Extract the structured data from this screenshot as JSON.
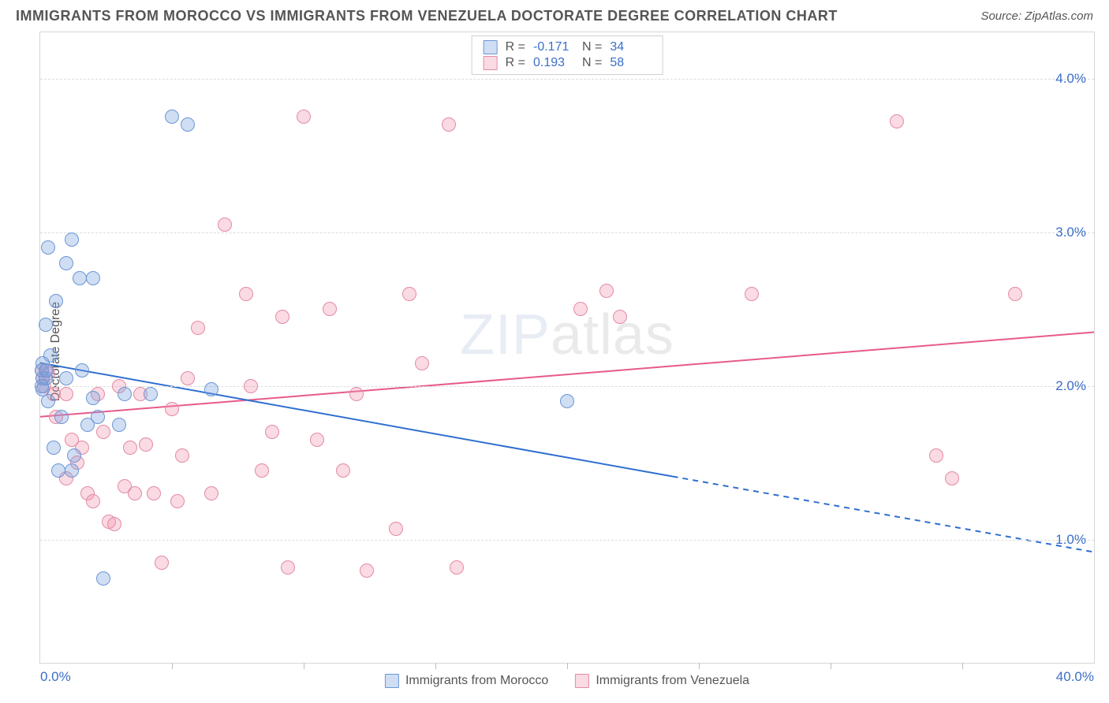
{
  "title": "IMMIGRANTS FROM MOROCCO VS IMMIGRANTS FROM VENEZUELA DOCTORATE DEGREE CORRELATION CHART",
  "source": "Source: ZipAtlas.com",
  "watermark_bold": "ZIP",
  "watermark_thin": "atlas",
  "chart": {
    "type": "scatter",
    "ylabel": "Doctorate Degree",
    "xlim": [
      0,
      40
    ],
    "ylim": [
      0.2,
      4.3
    ],
    "xtick_positions": [
      0,
      5,
      10,
      15,
      20,
      25,
      30,
      35,
      40
    ],
    "xlab_left": "0.0%",
    "xlab_right": "40.0%",
    "yticks": [
      1.0,
      2.0,
      3.0,
      4.0
    ],
    "ytick_labels": [
      "1.0%",
      "2.0%",
      "3.0%",
      "4.0%"
    ],
    "grid_color": "#dcdcdc",
    "background_color": "#ffffff",
    "marker_radius": 9,
    "marker_border_width": 1.5,
    "series": {
      "morocco": {
        "label": "Immigrants from Morocco",
        "fill": "rgba(120,160,220,0.35)",
        "stroke": "#6a96d6",
        "line_color": "#2f6fd0",
        "line_width": 2,
        "trend": {
          "y_at_x0": 2.15,
          "y_at_xmax": 0.92,
          "solid_until_x": 24
        },
        "R": "-0.171",
        "N": "34",
        "points": [
          [
            0.1,
            2.15
          ],
          [
            0.1,
            2.05
          ],
          [
            0.2,
            2.4
          ],
          [
            0.3,
            2.9
          ],
          [
            0.4,
            2.2
          ],
          [
            1.0,
            2.8
          ],
          [
            1.2,
            2.95
          ],
          [
            0.5,
            1.6
          ],
          [
            0.8,
            1.8
          ],
          [
            1.2,
            1.45
          ],
          [
            1.5,
            2.7
          ],
          [
            2.0,
            2.7
          ],
          [
            2.2,
            1.8
          ],
          [
            1.8,
            1.75
          ],
          [
            2.0,
            1.92
          ],
          [
            3.0,
            1.75
          ],
          [
            3.2,
            1.95
          ],
          [
            5.0,
            3.75
          ],
          [
            5.6,
            3.7
          ],
          [
            6.5,
            1.98
          ],
          [
            2.4,
            0.75
          ],
          [
            4.2,
            1.95
          ],
          [
            20.0,
            1.9
          ],
          [
            0.1,
            1.98
          ],
          [
            0.3,
            1.9
          ],
          [
            0.6,
            2.55
          ],
          [
            1.0,
            2.05
          ],
          [
            0.7,
            1.45
          ],
          [
            1.3,
            1.55
          ],
          [
            1.6,
            2.1
          ],
          [
            0.2,
            2.05
          ],
          [
            0.05,
            2.1
          ],
          [
            0.05,
            2.0
          ],
          [
            0.25,
            2.1
          ]
        ]
      },
      "venezuela": {
        "label": "Immigrants from Venezuela",
        "fill": "rgba(240,150,175,0.35)",
        "stroke": "#e48aa4",
        "line_color": "#e75a8b",
        "line_width": 2,
        "trend": {
          "y_at_x0": 1.8,
          "y_at_xmax": 2.35,
          "solid_until_x": 40
        },
        "R": "0.193",
        "N": "58",
        "points": [
          [
            0.05,
            2.1
          ],
          [
            0.1,
            2.05
          ],
          [
            0.15,
            2.0
          ],
          [
            0.3,
            2.08
          ],
          [
            0.5,
            1.95
          ],
          [
            1.0,
            1.95
          ],
          [
            1.2,
            1.65
          ],
          [
            1.4,
            1.5
          ],
          [
            1.6,
            1.6
          ],
          [
            1.8,
            1.3
          ],
          [
            2.0,
            1.25
          ],
          [
            2.2,
            1.95
          ],
          [
            2.4,
            1.7
          ],
          [
            2.6,
            1.12
          ],
          [
            3.0,
            2.0
          ],
          [
            3.2,
            1.35
          ],
          [
            3.4,
            1.6
          ],
          [
            3.6,
            1.3
          ],
          [
            4.0,
            1.62
          ],
          [
            4.3,
            1.3
          ],
          [
            4.6,
            0.85
          ],
          [
            5.0,
            1.85
          ],
          [
            5.2,
            1.25
          ],
          [
            5.6,
            2.05
          ],
          [
            6.0,
            2.38
          ],
          [
            6.5,
            1.3
          ],
          [
            7.0,
            3.05
          ],
          [
            7.8,
            2.6
          ],
          [
            8.0,
            2.0
          ],
          [
            8.4,
            1.45
          ],
          [
            8.8,
            1.7
          ],
          [
            9.2,
            2.45
          ],
          [
            9.4,
            0.82
          ],
          [
            10.0,
            3.75
          ],
          [
            10.5,
            1.65
          ],
          [
            11.0,
            2.5
          ],
          [
            11.5,
            1.45
          ],
          [
            12.0,
            1.95
          ],
          [
            12.4,
            0.8
          ],
          [
            13.5,
            1.07
          ],
          [
            14.0,
            2.6
          ],
          [
            14.5,
            2.15
          ],
          [
            15.5,
            3.7
          ],
          [
            15.8,
            0.82
          ],
          [
            20.5,
            2.5
          ],
          [
            21.5,
            2.62
          ],
          [
            22.0,
            2.45
          ],
          [
            27.0,
            2.6
          ],
          [
            32.5,
            3.72
          ],
          [
            34.0,
            1.55
          ],
          [
            34.6,
            1.4
          ],
          [
            37.0,
            2.6
          ],
          [
            0.6,
            1.8
          ],
          [
            1.0,
            1.4
          ],
          [
            2.8,
            1.1
          ],
          [
            3.8,
            1.95
          ],
          [
            5.4,
            1.55
          ],
          [
            0.2,
            2.1
          ]
        ]
      }
    }
  }
}
